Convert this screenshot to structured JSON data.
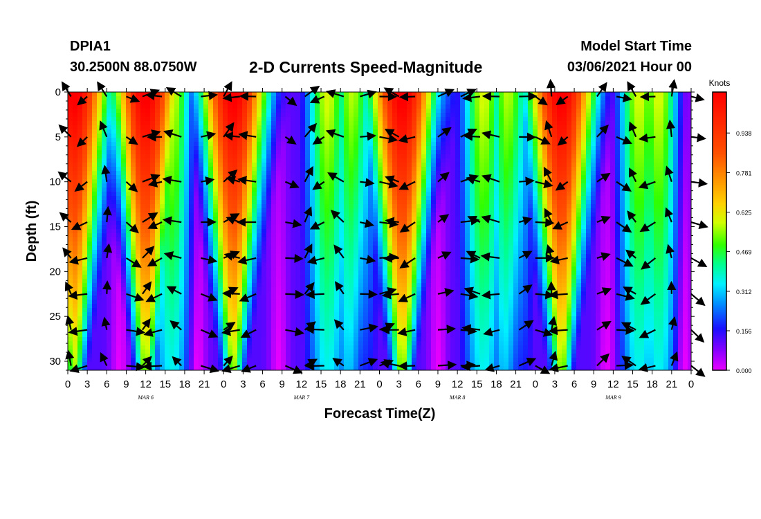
{
  "header": {
    "station": "DPIA1",
    "location": "30.2500N 88.0750W",
    "title": "2-D Currents Speed-Magnitude",
    "model_label": "Model Start Time",
    "model_time": "03/06/2021 Hour 00"
  },
  "chart_data": {
    "type": "heatmap",
    "title": "2-D Currents Speed-Magnitude",
    "xlabel": "Forecast Time(Z)",
    "ylabel": "Depth (ft)",
    "x_ticks": [
      "0",
      "3",
      "6",
      "9",
      "12",
      "15",
      "18",
      "21",
      "0",
      "3",
      "6",
      "9",
      "12",
      "15",
      "18",
      "21",
      "0",
      "3",
      "6",
      "9",
      "12",
      "15",
      "18",
      "21",
      "0",
      "3",
      "6",
      "9",
      "12",
      "15",
      "18",
      "21",
      "0"
    ],
    "x_hours_range": [
      0,
      96
    ],
    "day_labels": [
      {
        "label": "MAR 6",
        "hour": 12
      },
      {
        "label": "MAR 7",
        "hour": 36
      },
      {
        "label": "MAR 8",
        "hour": 60
      },
      {
        "label": "MAR 9",
        "hour": 84
      }
    ],
    "y_ticks": [
      0,
      5,
      10,
      15,
      20,
      25,
      30
    ],
    "ylim": [
      0,
      31
    ],
    "colorbar": {
      "unit": "Knots",
      "ticks": [
        "0.000",
        "0.156",
        "0.312",
        "0.469",
        "0.625",
        "0.781",
        "0.938"
      ],
      "range": [
        0,
        1.1
      ]
    },
    "high_speed_cores_hours": [
      1,
      12,
      25.5,
      51.5,
      76
    ],
    "low_speed_troughs_hours": [
      8,
      20,
      32.5,
      45,
      57,
      69,
      83,
      95
    ],
    "vector_columns_hours": [
      0.5,
      3,
      6,
      9,
      11.5,
      14.5,
      17.5,
      20.5,
      24,
      26.5,
      29,
      33.5,
      36.5,
      39.5,
      42.5,
      45,
      48,
      51,
      53.5,
      57,
      60.5,
      63.5,
      66.5,
      69.5,
      72,
      74.5,
      77,
      81.5,
      84.5,
      87.5,
      90.5,
      93,
      96
    ],
    "vector_rows_ft": [
      0.5,
      5,
      10,
      14.5,
      18.5,
      22.5,
      26.5,
      30.5
    ]
  }
}
